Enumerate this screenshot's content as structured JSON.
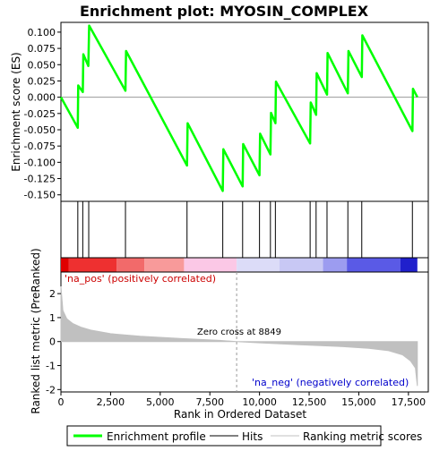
{
  "chart_data": {
    "type": "line",
    "title": "Enrichment plot: MYOSIN_COMPLEX",
    "top_panel": {
      "ylabel": "Enrichment score (ES)",
      "ylim": [
        -0.16,
        0.115
      ],
      "yticks": [
        0.1,
        0.075,
        0.05,
        0.025,
        0.0,
        -0.025,
        -0.05,
        -0.075,
        -0.1,
        -0.125,
        -0.15
      ],
      "ytick_labels": [
        "0.100",
        "0.075",
        "0.050",
        "0.025",
        "0.000",
        "-0.025",
        "-0.050",
        "-0.075",
        "-0.100",
        "-0.125",
        "-0.150"
      ],
      "series": [
        {
          "name": "Enrichment profile",
          "color": "#00ff00",
          "points": [
            [
              0,
              0.0
            ],
            [
              850,
              -0.047
            ],
            [
              870,
              0.018
            ],
            [
              1100,
              0.008
            ],
            [
              1130,
              0.066
            ],
            [
              1380,
              0.048
            ],
            [
              1420,
              0.11
            ],
            [
              3250,
              0.01
            ],
            [
              3280,
              0.071
            ],
            [
              6350,
              -0.105
            ],
            [
              6380,
              -0.04
            ],
            [
              8150,
              -0.144
            ],
            [
              8180,
              -0.08
            ],
            [
              9150,
              -0.137
            ],
            [
              9180,
              -0.072
            ],
            [
              10000,
              -0.12
            ],
            [
              10030,
              -0.056
            ],
            [
              10550,
              -0.088
            ],
            [
              10580,
              -0.024
            ],
            [
              10800,
              -0.04
            ],
            [
              10830,
              0.024
            ],
            [
              12550,
              -0.071
            ],
            [
              12580,
              -0.008
            ],
            [
              12850,
              -0.027
            ],
            [
              12880,
              0.037
            ],
            [
              13400,
              0.004
            ],
            [
              13430,
              0.068
            ],
            [
              14450,
              0.006
            ],
            [
              14480,
              0.071
            ],
            [
              15150,
              0.031
            ],
            [
              15180,
              0.095
            ],
            [
              17700,
              -0.052
            ],
            [
              17730,
              0.013
            ],
            [
              17950,
              0.0
            ]
          ]
        }
      ]
    },
    "hits_panel": {
      "name": "Hits",
      "positions": [
        850,
        1100,
        1400,
        3250,
        6350,
        8150,
        9150,
        10000,
        10550,
        10800,
        12550,
        12850,
        13400,
        14450,
        15150,
        17700
      ]
    },
    "bottom_panel": {
      "ylabel": "Ranked list metric (PreRanked)",
      "xlabel": "Rank in Ordered Dataset",
      "xlim": [
        0,
        18500
      ],
      "ylim": [
        -2.1,
        2.9
      ],
      "xticks": [
        0,
        2500,
        5000,
        7500,
        10000,
        12500,
        15000,
        17500
      ],
      "xtick_labels": [
        "0",
        "2,500",
        "5,000",
        "7,500",
        "10,000",
        "12,500",
        "15,000",
        "17,500"
      ],
      "yticks": [
        2,
        1,
        0,
        -1,
        -2
      ],
      "ytick_labels": [
        "2",
        "1",
        "0",
        "-1",
        "-2"
      ],
      "series_name": "Ranking metric scores",
      "metric_profile": [
        [
          0,
          2.3
        ],
        [
          100,
          1.3
        ],
        [
          300,
          0.95
        ],
        [
          600,
          0.75
        ],
        [
          1000,
          0.6
        ],
        [
          1500,
          0.48
        ],
        [
          2500,
          0.33
        ],
        [
          4000,
          0.22
        ],
        [
          6000,
          0.13
        ],
        [
          8000,
          0.05
        ],
        [
          8849,
          0.0
        ],
        [
          10000,
          -0.05
        ],
        [
          12000,
          -0.13
        ],
        [
          14000,
          -0.2
        ],
        [
          15500,
          -0.28
        ],
        [
          16500,
          -0.38
        ],
        [
          17200,
          -0.55
        ],
        [
          17600,
          -0.8
        ],
        [
          17850,
          -1.1
        ],
        [
          17950,
          -1.85
        ]
      ],
      "zero_cross_rank": 8849,
      "zero_cross_label": "Zero cross at 8849",
      "pos_label": "'na_pos' (positively correlated)",
      "neg_label": "'na_neg' (negatively correlated)",
      "dataset_size": 17950
    },
    "legend": {
      "placement": "bottom",
      "entries": [
        {
          "label": "Enrichment profile",
          "color": "#00ff00"
        },
        {
          "label": "Hits",
          "color": "#000000"
        },
        {
          "label": "Ranking metric scores",
          "color": "#c0c0c0"
        }
      ]
    },
    "colors": {
      "pos_label": "#cc0000",
      "neg_label": "#0000cc",
      "metric_fill": "#c0c0c0",
      "zero_cross_line": "#999999"
    }
  }
}
